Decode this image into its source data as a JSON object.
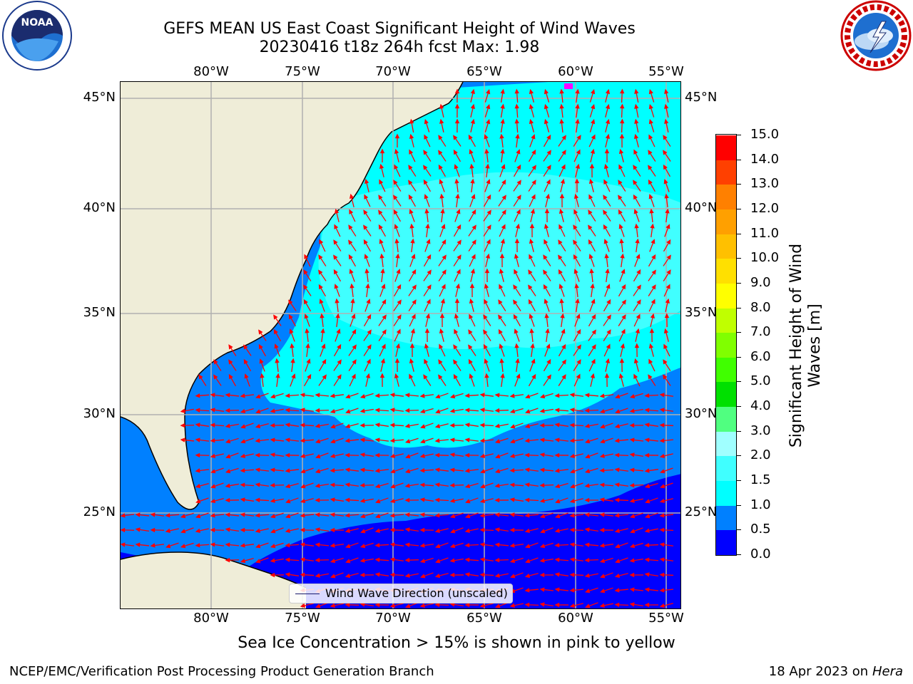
{
  "header": {
    "title_line1": "GEFS MEAN US East Coast Significant Height of Wind Waves",
    "title_line2": "20230416 t18z 264h fcst   Max: 1.98"
  },
  "logos": {
    "left": {
      "name": "NOAA",
      "ring_text": "NATIONAL OCEANIC AND ATMOSPHERIC ADMINISTRATION · U.S. DEPARTMENT OF COMMERCE"
    },
    "right": {
      "ring_text": "NATIONAL WEATHER SERVICE"
    }
  },
  "map": {
    "lon_labels": [
      "80°W",
      "75°W",
      "70°W",
      "65°W",
      "60°W",
      "55°W"
    ],
    "lat_labels": [
      "45°N",
      "40°N",
      "35°N",
      "30°N",
      "25°N"
    ],
    "legend_label": "Wind Wave Direction (unscaled)",
    "colors": {
      "land": "#efedd8",
      "gridlines": "#b0b0b0",
      "arrows": "#ff0000",
      "coastline": "#000000"
    }
  },
  "colorbar": {
    "label": "Significant Height of Wind Waves [m]",
    "ticks": [
      "0.0",
      "0.5",
      "1.0",
      "1.5",
      "2.0",
      "3.0",
      "4.0",
      "5.0",
      "6.0",
      "7.0",
      "8.0",
      "9.0",
      "10.0",
      "11.0",
      "12.0",
      "13.0",
      "14.0",
      "15.0"
    ],
    "colors": [
      "#0000ff",
      "#0080ff",
      "#00ffff",
      "#40ffff",
      "#a0ffff",
      "#50ff80",
      "#00e000",
      "#40ff00",
      "#80ff00",
      "#c0ff00",
      "#ffff00",
      "#ffe000",
      "#ffc000",
      "#ffa000",
      "#ff8000",
      "#ff4000",
      "#ff0000"
    ]
  },
  "note": "Sea Ice Concentration > 15% is shown in pink to yellow",
  "footer": {
    "left": "NCEP/EMC/Verification Post Processing Product Generation Branch",
    "right_date": "18 Apr 2023 on ",
    "right_host": "Hera"
  }
}
